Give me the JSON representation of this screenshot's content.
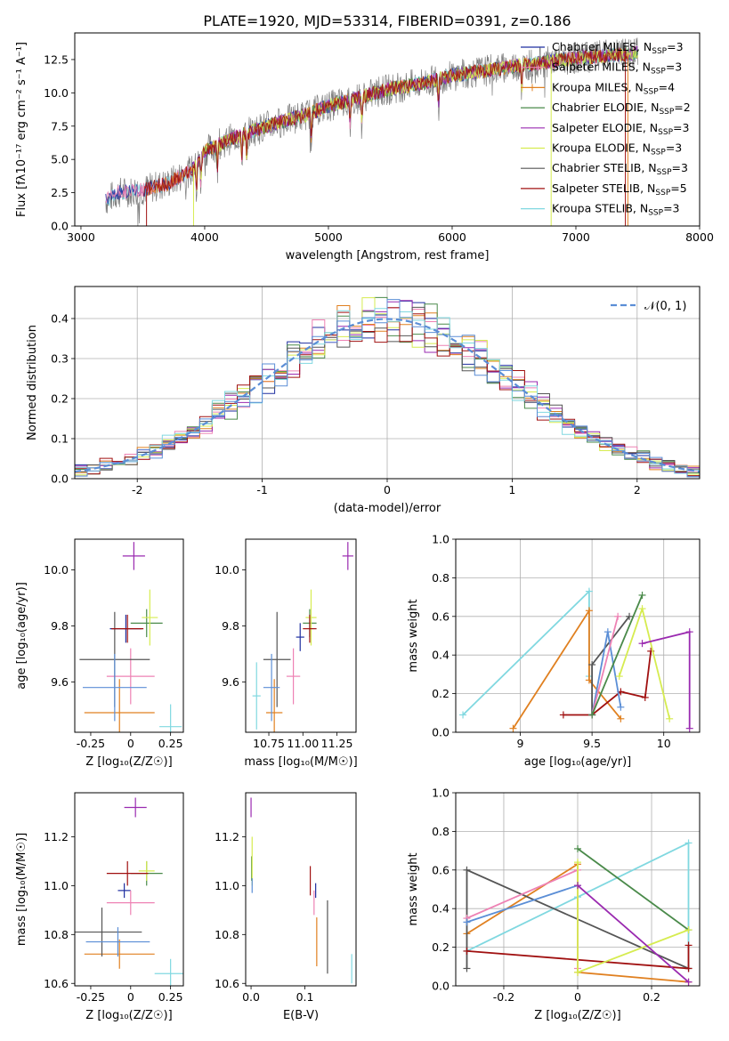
{
  "title": "PLATE=1920, MJD=53314, FIBERID=0391, z=0.186",
  "colors": {
    "chab_miles": "#1f2fa0",
    "salp_miles": "#ee82b4",
    "krou_miles": "#e08020",
    "chab_elodie": "#4a8a4a",
    "salp_elodie": "#9a2ab0",
    "krou_elodie": "#d6ec50",
    "chab_stelib": "#555555",
    "salp_stelib": "#a01010",
    "krou_stelib": "#80d8e0",
    "blue_main": "#5b8ed6",
    "normal": "#5b8ed6"
  },
  "chart_data": [
    {
      "id": "spectrum",
      "type": "line",
      "xlabel": "wavelength [Angstrom, rest frame]",
      "ylabel": "Flux [fλ10⁻¹⁷ erg cm⁻² s⁻¹ A⁻¹]",
      "xlim": [
        2950,
        8000
      ],
      "ylim": [
        0,
        14.5
      ],
      "xticks": [
        3000,
        4000,
        5000,
        6000,
        7000,
        8000
      ],
      "yticks": [
        0.0,
        2.5,
        5.0,
        7.5,
        10.0,
        12.5
      ],
      "legend_position": "top-right",
      "legend": [
        "Chabrier MILES, N_SSP=3",
        "Salpeter MILES, N_SSP=3",
        "Kroupa MILES, N_SSP=4",
        "Chabrier ELODIE, N_SSP=2",
        "Salpeter ELODIE, N_SSP=3",
        "Kroupa ELODIE, N_SSP=3",
        "Chabrier STELIB, N_SSP=3",
        "Salpeter STELIB, N_SSP=5",
        "Kroupa STELIB, N_SSP=3"
      ],
      "continuum": {
        "x": [
          3200,
          3300,
          3500,
          3700,
          3900,
          4000,
          4200,
          4500,
          4800,
          5000,
          5200,
          5500,
          5800,
          6000,
          6300,
          6500,
          7000,
          7500
        ],
        "y": [
          1.9,
          2.5,
          2.7,
          3.2,
          4.2,
          5.6,
          6.5,
          7.5,
          8.3,
          9.0,
          9.5,
          10.3,
          10.8,
          11.3,
          11.7,
          12.0,
          12.6,
          13.0
        ]
      }
    },
    {
      "id": "residuals",
      "type": "histogram",
      "xlabel": "(data-model)/error",
      "ylabel": "Normed distribution",
      "xlim": [
        -2.5,
        2.5
      ],
      "ylim": [
        0,
        0.48
      ],
      "xticks": [
        -2,
        -1,
        0,
        1,
        2
      ],
      "yticks": [
        0.0,
        0.1,
        0.2,
        0.3,
        0.4
      ],
      "legend": "𝒩(0, 1)",
      "legend_position": "top-right",
      "grid": true
    },
    {
      "id": "age_vs_Z",
      "type": "errorbar",
      "xlabel": "Z [log₁₀(Z/Z☉)]",
      "ylabel": "age  [log₁₀(age/yr)]",
      "xlim": [
        -0.35,
        0.33
      ],
      "ylim": [
        9.42,
        10.11
      ],
      "xticks": [
        -0.25,
        0.0,
        0.25
      ],
      "yticks": [
        9.6,
        9.8,
        10.0
      ],
      "points": [
        {
          "series": "chab_miles",
          "x": -0.03,
          "y": 9.79,
          "xerr": 0.1,
          "yerr": 0.05
        },
        {
          "series": "salp_miles",
          "x": 0.0,
          "y": 9.62,
          "xerr": 0.15,
          "yerr": 0.1
        },
        {
          "series": "krou_miles",
          "x": -0.07,
          "y": 9.49,
          "xerr": 0.22,
          "yerr": 0.12
        },
        {
          "series": "chab_elodie",
          "x": 0.1,
          "y": 9.81,
          "xerr": 0.1,
          "yerr": 0.05
        },
        {
          "series": "salp_elodie",
          "x": 0.02,
          "y": 10.05,
          "xerr": 0.07,
          "yerr": 0.05
        },
        {
          "series": "krou_elodie",
          "x": 0.12,
          "y": 9.83,
          "xerr": 0.05,
          "yerr": 0.1
        },
        {
          "series": "chab_stelib",
          "x": -0.1,
          "y": 9.68,
          "xerr": 0.22,
          "yerr": 0.17
        },
        {
          "series": "salp_stelib",
          "x": -0.02,
          "y": 9.79,
          "xerr": 0.1,
          "yerr": 0.05
        },
        {
          "series": "krou_stelib",
          "x": 0.25,
          "y": 9.44,
          "xerr": 0.07,
          "yerr": 0.08
        },
        {
          "series": "blue_main",
          "x": -0.1,
          "y": 9.58,
          "xerr": 0.2,
          "yerr": 0.12
        }
      ]
    },
    {
      "id": "age_vs_mass",
      "type": "errorbar",
      "xlabel": "mass [log₁₀(M/M☉)]",
      "ylabel": "",
      "xlim": [
        10.58,
        11.39
      ],
      "ylim": [
        9.42,
        10.11
      ],
      "xticks": [
        10.75,
        11.0,
        11.25
      ],
      "tick_labels": [
        "10.75",
        "11.00",
        "11.25"
      ],
      "yticks": [
        9.6,
        9.8,
        10.0
      ],
      "points": [
        {
          "series": "chab_miles",
          "x": 10.98,
          "y": 9.76,
          "xerr": 0.03,
          "yerr": 0.05
        },
        {
          "series": "salp_miles",
          "x": 10.93,
          "y": 9.62,
          "xerr": 0.05,
          "yerr": 0.1
        },
        {
          "series": "krou_miles",
          "x": 10.79,
          "y": 9.49,
          "xerr": 0.06,
          "yerr": 0.12
        },
        {
          "series": "chab_elodie",
          "x": 11.05,
          "y": 9.81,
          "xerr": 0.05,
          "yerr": 0.05
        },
        {
          "series": "salp_elodie",
          "x": 11.33,
          "y": 10.05,
          "xerr": 0.04,
          "yerr": 0.05
        },
        {
          "series": "krou_elodie",
          "x": 11.06,
          "y": 9.83,
          "xerr": 0.04,
          "yerr": 0.1
        },
        {
          "series": "chab_stelib",
          "x": 10.81,
          "y": 9.68,
          "xerr": 0.1,
          "yerr": 0.17
        },
        {
          "series": "salp_stelib",
          "x": 11.05,
          "y": 9.79,
          "xerr": 0.05,
          "yerr": 0.05
        },
        {
          "series": "krou_stelib",
          "x": 10.66,
          "y": 9.55,
          "xerr": 0.03,
          "yerr": 0.12
        },
        {
          "series": "blue_main",
          "x": 10.77,
          "y": 9.58,
          "xerr": 0.06,
          "yerr": 0.12
        }
      ]
    },
    {
      "id": "massweight_vs_age",
      "type": "line",
      "xlabel": "age  [log₁₀(age/yr)]",
      "ylabel": "mass weight",
      "xlim": [
        8.55,
        10.25
      ],
      "ylim": [
        0,
        1.0
      ],
      "xticks": [
        9.0,
        9.5,
        10.0
      ],
      "yticks": [
        0.0,
        0.2,
        0.4,
        0.6,
        0.8,
        1.0
      ],
      "grid": true,
      "series": [
        {
          "key": "krou_stelib",
          "x": [
            8.6,
            9.48,
            9.48
          ],
          "y": [
            0.09,
            0.73,
            0.29
          ]
        },
        {
          "key": "krou_miles",
          "x": [
            8.95,
            9.48,
            9.48,
            9.7
          ],
          "y": [
            0.02,
            0.63,
            0.27,
            0.07
          ]
        },
        {
          "key": "salp_stelib",
          "x": [
            9.3,
            9.5,
            9.7,
            9.87,
            9.91
          ],
          "y": [
            0.09,
            0.09,
            0.21,
            0.18,
            0.42
          ]
        },
        {
          "key": "chab_stelib",
          "x": [
            9.5,
            9.5,
            9.76
          ],
          "y": [
            0.09,
            0.35,
            0.6
          ]
        },
        {
          "key": "blue_main",
          "x": [
            9.5,
            9.61,
            9.7
          ],
          "y": [
            0.09,
            0.52,
            0.13
          ]
        },
        {
          "key": "salp_miles",
          "x": [
            9.5,
            9.68
          ],
          "y": [
            0.09,
            0.6
          ]
        },
        {
          "key": "chab_elodie",
          "x": [
            9.5,
            9.85
          ],
          "y": [
            0.09,
            0.71
          ]
        },
        {
          "key": "krou_elodie",
          "x": [
            9.69,
            9.85,
            10.04
          ],
          "y": [
            0.29,
            0.64,
            0.07
          ]
        },
        {
          "key": "salp_elodie",
          "x": [
            9.85,
            10.18,
            10.18
          ],
          "y": [
            0.46,
            0.52,
            0.02
          ]
        }
      ]
    },
    {
      "id": "mass_vs_Z",
      "type": "errorbar",
      "xlabel": "Z [log₁₀(Z/Z☉)]",
      "ylabel": "mass [log₁₀(M/M☉)]",
      "xlim": [
        -0.35,
        0.33
      ],
      "ylim": [
        10.59,
        11.38
      ],
      "xticks": [
        -0.25,
        0.0,
        0.25
      ],
      "yticks": [
        10.6,
        10.8,
        11.0,
        11.2
      ],
      "points": [
        {
          "series": "chab_miles",
          "x": -0.04,
          "y": 10.98,
          "xerr": 0.04,
          "yerr": 0.03
        },
        {
          "series": "salp_miles",
          "x": 0.0,
          "y": 10.93,
          "xerr": 0.15,
          "yerr": 0.05
        },
        {
          "series": "krou_miles",
          "x": -0.07,
          "y": 10.72,
          "xerr": 0.22,
          "yerr": 0.06
        },
        {
          "series": "chab_elodie",
          "x": 0.1,
          "y": 11.05,
          "xerr": 0.1,
          "yerr": 0.05
        },
        {
          "series": "salp_elodie",
          "x": 0.03,
          "y": 11.32,
          "xerr": 0.07,
          "yerr": 0.04
        },
        {
          "series": "krou_elodie",
          "x": 0.1,
          "y": 11.06,
          "xerr": 0.05,
          "yerr": 0.04
        },
        {
          "series": "chab_stelib",
          "x": -0.18,
          "y": 10.81,
          "xerr": 0.25,
          "yerr": 0.1
        },
        {
          "series": "salp_stelib",
          "x": -0.02,
          "y": 11.05,
          "xerr": 0.13,
          "yerr": 0.05
        },
        {
          "series": "krou_stelib",
          "x": 0.25,
          "y": 10.64,
          "xerr": 0.1,
          "yerr": 0.06
        },
        {
          "series": "blue_main",
          "x": -0.08,
          "y": 10.77,
          "xerr": 0.2,
          "yerr": 0.06
        }
      ]
    },
    {
      "id": "mass_vs_ebv",
      "type": "errorbar",
      "xlabel": "E(B-V)",
      "ylabel": "",
      "xlim": [
        -0.01,
        0.195
      ],
      "ylim": [
        10.59,
        11.38
      ],
      "xticks": [
        0.0,
        0.1
      ],
      "tick_labels": [
        "0.0",
        "0.1"
      ],
      "yticks": [
        10.6,
        10.8,
        11.0,
        11.2
      ],
      "points": [
        {
          "series": "chab_miles",
          "x": 0.12,
          "y": 10.98,
          "xerr": 0.0,
          "yerr": 0.03
        },
        {
          "series": "salp_miles",
          "x": 0.117,
          "y": 10.93,
          "xerr": 0.0,
          "yerr": 0.05
        },
        {
          "series": "krou_miles",
          "x": 0.122,
          "y": 10.77,
          "xerr": 0.0,
          "yerr": 0.1
        },
        {
          "series": "chab_elodie",
          "x": 0.001,
          "y": 11.07,
          "xerr": 0.0,
          "yerr": 0.05
        },
        {
          "series": "salp_elodie",
          "x": 0.0,
          "y": 11.32,
          "xerr": 0.0,
          "yerr": 0.04
        },
        {
          "series": "krou_elodie",
          "x": 0.002,
          "y": 11.1,
          "xerr": 0.0,
          "yerr": 0.1
        },
        {
          "series": "chab_stelib",
          "x": 0.142,
          "y": 10.79,
          "xerr": 0.0,
          "yerr": 0.15
        },
        {
          "series": "salp_stelib",
          "x": 0.11,
          "y": 11.02,
          "xerr": 0.0,
          "yerr": 0.06
        },
        {
          "series": "krou_stelib",
          "x": 0.187,
          "y": 10.66,
          "xerr": 0.0,
          "yerr": 0.06
        },
        {
          "series": "blue_main",
          "x": 0.002,
          "y": 11.0,
          "xerr": 0.0,
          "yerr": 0.03
        }
      ]
    },
    {
      "id": "massweight_vs_Z",
      "type": "line",
      "xlabel": "Z [log₁₀(Z/Z☉)]",
      "ylabel": "mass weight",
      "xlim": [
        -0.33,
        0.33
      ],
      "ylim": [
        0,
        1.0
      ],
      "xticks": [
        -0.2,
        0.0,
        0.2
      ],
      "yticks": [
        0.0,
        0.2,
        0.4,
        0.6,
        0.8,
        1.0
      ],
      "grid": true,
      "series": [
        {
          "key": "krou_stelib",
          "x": [
            -0.3,
            0.0,
            0.3,
            0.3
          ],
          "y": [
            0.18,
            0.46,
            0.74,
            0.09
          ]
        },
        {
          "key": "krou_miles",
          "x": [
            -0.3,
            0.0,
            0.0,
            0.3
          ],
          "y": [
            0.27,
            0.63,
            0.07,
            0.02
          ]
        },
        {
          "key": "chab_stelib",
          "x": [
            -0.3,
            -0.3,
            0.3
          ],
          "y": [
            0.09,
            0.6,
            0.09
          ]
        },
        {
          "key": "salp_stelib",
          "x": [
            -0.3,
            0.3,
            0.3
          ],
          "y": [
            0.18,
            0.09,
            0.21
          ]
        },
        {
          "key": "salp_miles",
          "x": [
            -0.3,
            0.0,
            0.0
          ],
          "y": [
            0.35,
            0.6,
            0.09
          ]
        },
        {
          "key": "blue_main",
          "x": [
            -0.3,
            0.0
          ],
          "y": [
            0.33,
            0.52
          ]
        },
        {
          "key": "chab_elodie",
          "x": [
            0.0,
            0.3
          ],
          "y": [
            0.71,
            0.29
          ]
        },
        {
          "key": "krou_elodie",
          "x": [
            0.0,
            0.0,
            0.3
          ],
          "y": [
            0.64,
            0.07,
            0.29
          ]
        },
        {
          "key": "salp_elodie",
          "x": [
            0.0,
            0.3
          ],
          "y": [
            0.52,
            0.02
          ]
        }
      ]
    }
  ]
}
